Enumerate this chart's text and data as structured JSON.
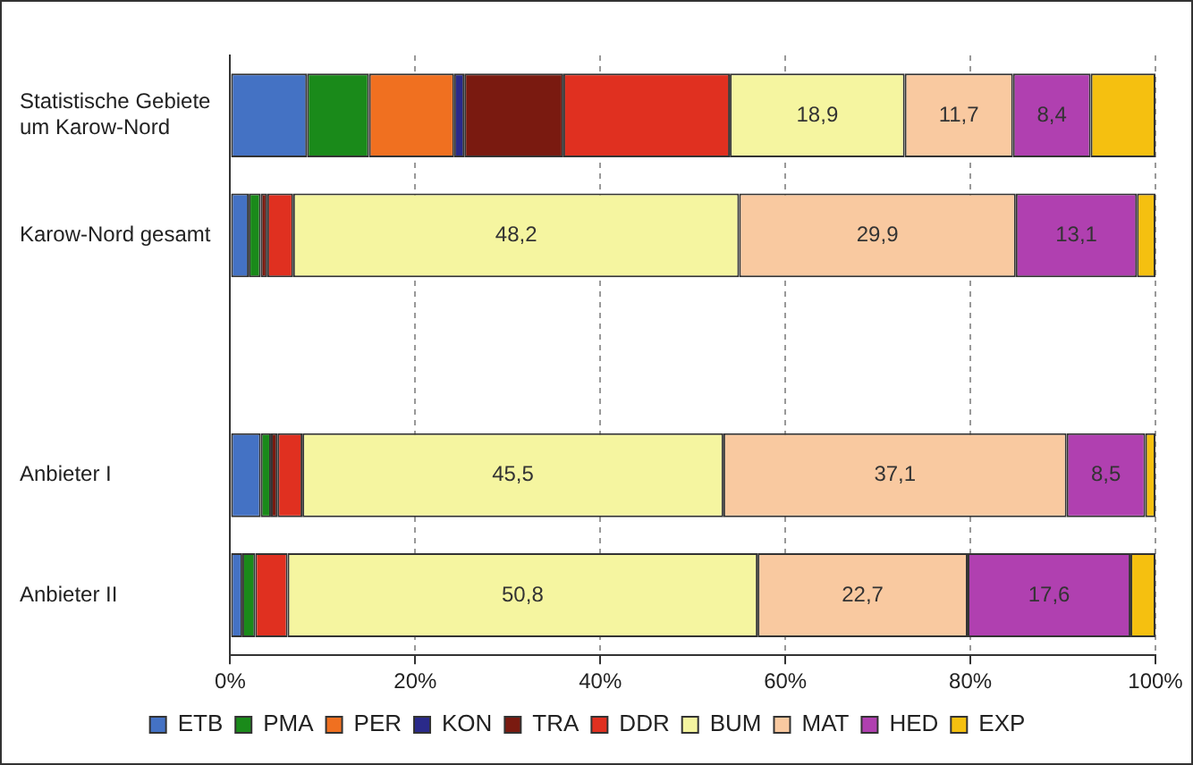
{
  "chart_data": {
    "type": "bar",
    "orientation": "horizontal",
    "stacked": true,
    "categories": [
      "Statistische Gebiete um Karow-Nord",
      "Karow-Nord gesamt",
      null,
      "Anbieter I",
      "Anbieter II"
    ],
    "series": [
      {
        "name": "ETB",
        "color": "#4472c4",
        "values": [
          8.3,
          2.0,
          null,
          3.3,
          1.3
        ]
      },
      {
        "name": "PMA",
        "color": "#1a8a1a",
        "values": [
          6.7,
          1.3,
          null,
          1.1,
          1.4
        ]
      },
      {
        "name": "PER",
        "color": "#f07020",
        "values": [
          9.2,
          0,
          null,
          0,
          0
        ]
      },
      {
        "name": "KON",
        "color": "#2a2a8a",
        "values": [
          1.1,
          0,
          null,
          0,
          0
        ]
      },
      {
        "name": "TRA",
        "color": "#7a1a10",
        "values": [
          10.7,
          0.7,
          null,
          0.7,
          0
        ]
      },
      {
        "name": "DDR",
        "color": "#e03020",
        "values": [
          18.0,
          2.8,
          null,
          2.7,
          3.5
        ]
      },
      {
        "name": "BUM",
        "color": "#f5f5a0",
        "values": [
          18.9,
          48.2,
          null,
          45.5,
          50.8
        ],
        "value_labels": [
          "18,9",
          "48,2",
          null,
          "45,5",
          "50,8"
        ]
      },
      {
        "name": "MAT",
        "color": "#f9c9a0",
        "values": [
          11.7,
          29.9,
          null,
          37.1,
          22.7
        ],
        "value_labels": [
          "11,7",
          "29,9",
          null,
          "37,1",
          "22,7"
        ]
      },
      {
        "name": "HED",
        "color": "#b040b0",
        "values": [
          8.4,
          13.1,
          null,
          8.5,
          17.6
        ],
        "value_labels": [
          "8,4",
          "13,1",
          null,
          "8,5",
          "17,6"
        ]
      },
      {
        "name": "EXP",
        "color": "#f5c010",
        "values": [
          7.0,
          2.0,
          null,
          1.1,
          2.7
        ]
      }
    ],
    "xlim": [
      0,
      100
    ],
    "xticks": [
      {
        "value": 0,
        "label": "0%"
      },
      {
        "value": 20,
        "label": "20%"
      },
      {
        "value": 40,
        "label": "40%"
      },
      {
        "value": 60,
        "label": "60%"
      },
      {
        "value": 80,
        "label": "80%"
      },
      {
        "value": 100,
        "label": "100%"
      }
    ],
    "grid": "x",
    "legend": "bottom"
  }
}
